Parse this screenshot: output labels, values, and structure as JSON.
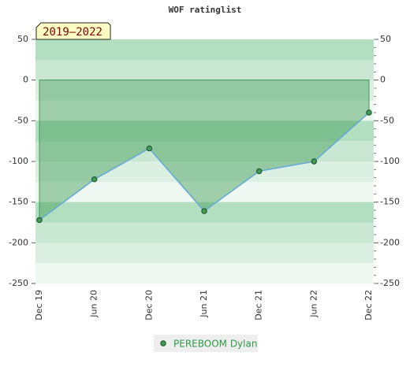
{
  "chart_data": {
    "type": "area",
    "title": "WOF ratinglist",
    "annotation": "2019–2022",
    "categories": [
      "Dec 19",
      "Jun 20",
      "Dec 20",
      "Jun 21",
      "Dec 21",
      "Jun 22",
      "Dec 22"
    ],
    "series": [
      {
        "name": "PEREBOOM Dylan",
        "color": "#3f9c55",
        "line_color": "#64a9d8",
        "values": [
          -172,
          -122,
          -84,
          -161,
          -112,
          -100,
          -40
        ]
      }
    ],
    "ylim": [
      -250,
      50
    ],
    "yticks": [
      -250,
      -200,
      -150,
      -100,
      -50,
      0,
      50
    ],
    "y2lim": [
      -250,
      50
    ],
    "y2ticks": [
      -250,
      -200,
      -150,
      -100,
      -50,
      0,
      50
    ],
    "legend": "bottom"
  }
}
